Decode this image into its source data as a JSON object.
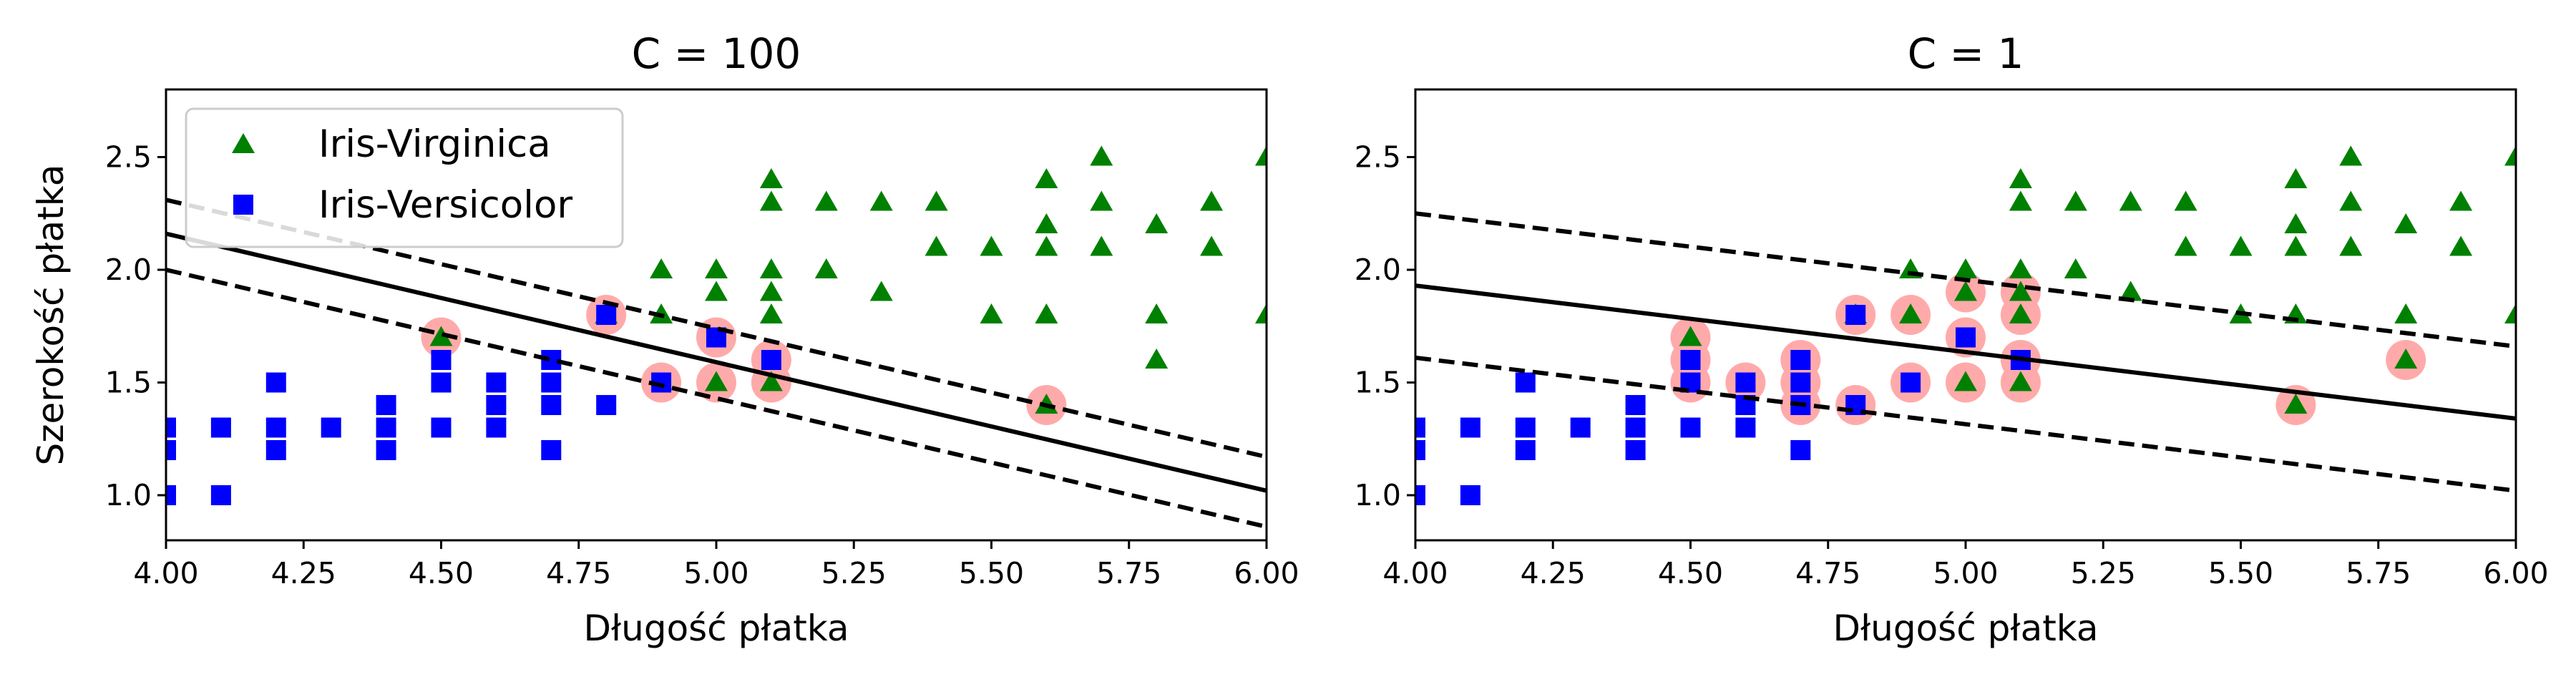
{
  "chart_data": [
    {
      "type": "scatter",
      "title": "C = 100",
      "xlabel": "Długość płatka",
      "ylabel": "Szerokość płatka",
      "xlim": [
        4.0,
        6.0
      ],
      "ylim": [
        0.8,
        2.8
      ],
      "xticks": [
        "4.00",
        "4.25",
        "4.50",
        "4.75",
        "5.00",
        "5.25",
        "5.50",
        "5.75",
        "6.00"
      ],
      "yticks": [
        "1.0",
        "1.5",
        "2.0",
        "2.5"
      ],
      "legend": {
        "position": "upper-left",
        "entries": [
          "Iris-Virginica",
          "Iris-Versicolor"
        ]
      },
      "series": [
        {
          "name": "Iris-Virginica",
          "marker": "triangle",
          "color": "#008000",
          "points": [
            [
              4.5,
              1.7
            ],
            [
              4.8,
              1.8
            ],
            [
              4.9,
              1.8
            ],
            [
              4.9,
              2.0
            ],
            [
              5.0,
              1.5
            ],
            [
              5.0,
              2.0
            ],
            [
              5.0,
              1.9
            ],
            [
              5.1,
              1.5
            ],
            [
              5.1,
              1.8
            ],
            [
              5.1,
              1.9
            ],
            [
              5.1,
              2.0
            ],
            [
              5.1,
              2.3
            ],
            [
              5.1,
              2.4
            ],
            [
              5.2,
              2.0
            ],
            [
              5.2,
              2.3
            ],
            [
              5.3,
              1.9
            ],
            [
              5.3,
              2.3
            ],
            [
              5.4,
              2.1
            ],
            [
              5.4,
              2.3
            ],
            [
              5.5,
              1.8
            ],
            [
              5.5,
              2.1
            ],
            [
              5.6,
              1.4
            ],
            [
              5.6,
              1.8
            ],
            [
              5.6,
              2.1
            ],
            [
              5.6,
              2.2
            ],
            [
              5.6,
              2.4
            ],
            [
              5.7,
              2.1
            ],
            [
              5.7,
              2.3
            ],
            [
              5.7,
              2.5
            ],
            [
              5.8,
              1.6
            ],
            [
              5.8,
              1.8
            ],
            [
              5.8,
              2.2
            ],
            [
              5.9,
              2.1
            ],
            [
              5.9,
              2.3
            ],
            [
              6.0,
              1.8
            ],
            [
              6.0,
              2.5
            ]
          ]
        },
        {
          "name": "Iris-Versicolor",
          "marker": "square",
          "color": "#0000ff",
          "points": [
            [
              4.0,
              1.0
            ],
            [
              4.0,
              1.2
            ],
            [
              4.0,
              1.3
            ],
            [
              4.1,
              1.0
            ],
            [
              4.1,
              1.3
            ],
            [
              4.2,
              1.2
            ],
            [
              4.2,
              1.3
            ],
            [
              4.2,
              1.5
            ],
            [
              4.3,
              1.3
            ],
            [
              4.4,
              1.2
            ],
            [
              4.4,
              1.3
            ],
            [
              4.4,
              1.4
            ],
            [
              4.5,
              1.3
            ],
            [
              4.5,
              1.5
            ],
            [
              4.5,
              1.6
            ],
            [
              4.6,
              1.3
            ],
            [
              4.6,
              1.4
            ],
            [
              4.6,
              1.5
            ],
            [
              4.7,
              1.2
            ],
            [
              4.7,
              1.4
            ],
            [
              4.7,
              1.5
            ],
            [
              4.7,
              1.6
            ],
            [
              4.8,
              1.4
            ],
            [
              4.8,
              1.8
            ],
            [
              4.9,
              1.5
            ],
            [
              5.0,
              1.7
            ],
            [
              5.1,
              1.6
            ]
          ]
        }
      ],
      "support_vectors": [
        [
          4.5,
          1.7
        ],
        [
          4.8,
          1.8
        ],
        [
          4.9,
          1.5
        ],
        [
          5.0,
          1.5
        ],
        [
          5.0,
          1.7
        ],
        [
          5.1,
          1.5
        ],
        [
          5.1,
          1.6
        ],
        [
          5.6,
          1.4
        ]
      ],
      "decision_boundary": {
        "x": [
          4.0,
          6.0
        ],
        "y": [
          2.16,
          1.02
        ],
        "style": "solid"
      },
      "margins": [
        {
          "x": [
            4.0,
            6.0
          ],
          "y": [
            2.31,
            1.17
          ],
          "style": "dashed"
        },
        {
          "x": [
            4.0,
            6.0
          ],
          "y": [
            2.0,
            0.86
          ],
          "style": "dashed"
        }
      ]
    },
    {
      "type": "scatter",
      "title": "C = 1",
      "xlabel": "Długość płatka",
      "ylabel": "",
      "xlim": [
        4.0,
        6.0
      ],
      "ylim": [
        0.8,
        2.8
      ],
      "xticks": [
        "4.00",
        "4.25",
        "4.50",
        "4.75",
        "5.00",
        "5.25",
        "5.50",
        "5.75",
        "6.00"
      ],
      "yticks": [
        "1.0",
        "1.5",
        "2.0",
        "2.5"
      ],
      "series": [
        {
          "name": "Iris-Virginica",
          "marker": "triangle",
          "color": "#008000",
          "points": [
            [
              4.5,
              1.7
            ],
            [
              4.8,
              1.8
            ],
            [
              4.9,
              1.8
            ],
            [
              4.9,
              2.0
            ],
            [
              5.0,
              1.5
            ],
            [
              5.0,
              2.0
            ],
            [
              5.0,
              1.9
            ],
            [
              5.1,
              1.5
            ],
            [
              5.1,
              1.8
            ],
            [
              5.1,
              1.9
            ],
            [
              5.1,
              2.0
            ],
            [
              5.1,
              2.3
            ],
            [
              5.1,
              2.4
            ],
            [
              5.2,
              2.0
            ],
            [
              5.2,
              2.3
            ],
            [
              5.3,
              1.9
            ],
            [
              5.3,
              2.3
            ],
            [
              5.4,
              2.1
            ],
            [
              5.4,
              2.3
            ],
            [
              5.5,
              1.8
            ],
            [
              5.5,
              2.1
            ],
            [
              5.6,
              1.4
            ],
            [
              5.6,
              1.8
            ],
            [
              5.6,
              2.1
            ],
            [
              5.6,
              2.2
            ],
            [
              5.6,
              2.4
            ],
            [
              5.7,
              2.1
            ],
            [
              5.7,
              2.3
            ],
            [
              5.7,
              2.5
            ],
            [
              5.8,
              1.6
            ],
            [
              5.8,
              1.8
            ],
            [
              5.8,
              2.2
            ],
            [
              5.9,
              2.1
            ],
            [
              5.9,
              2.3
            ],
            [
              6.0,
              1.8
            ],
            [
              6.0,
              2.5
            ]
          ]
        },
        {
          "name": "Iris-Versicolor",
          "marker": "square",
          "color": "#0000ff",
          "points": [
            [
              4.0,
              1.0
            ],
            [
              4.0,
              1.2
            ],
            [
              4.0,
              1.3
            ],
            [
              4.1,
              1.0
            ],
            [
              4.1,
              1.3
            ],
            [
              4.2,
              1.2
            ],
            [
              4.2,
              1.3
            ],
            [
              4.2,
              1.5
            ],
            [
              4.3,
              1.3
            ],
            [
              4.4,
              1.2
            ],
            [
              4.4,
              1.3
            ],
            [
              4.4,
              1.4
            ],
            [
              4.5,
              1.3
            ],
            [
              4.5,
              1.5
            ],
            [
              4.5,
              1.6
            ],
            [
              4.6,
              1.3
            ],
            [
              4.6,
              1.4
            ],
            [
              4.6,
              1.5
            ],
            [
              4.7,
              1.2
            ],
            [
              4.7,
              1.4
            ],
            [
              4.7,
              1.5
            ],
            [
              4.7,
              1.6
            ],
            [
              4.8,
              1.4
            ],
            [
              4.8,
              1.8
            ],
            [
              4.9,
              1.5
            ],
            [
              5.0,
              1.7
            ],
            [
              5.1,
              1.6
            ]
          ]
        }
      ],
      "support_vectors": [
        [
          4.5,
          1.5
        ],
        [
          4.5,
          1.6
        ],
        [
          4.5,
          1.7
        ],
        [
          4.6,
          1.5
        ],
        [
          4.7,
          1.4
        ],
        [
          4.7,
          1.5
        ],
        [
          4.7,
          1.6
        ],
        [
          4.8,
          1.4
        ],
        [
          4.8,
          1.8
        ],
        [
          4.9,
          1.5
        ],
        [
          4.9,
          1.8
        ],
        [
          5.0,
          1.5
        ],
        [
          5.0,
          1.7
        ],
        [
          5.0,
          1.9
        ],
        [
          5.1,
          1.5
        ],
        [
          5.1,
          1.6
        ],
        [
          5.1,
          1.8
        ],
        [
          5.1,
          1.9
        ],
        [
          5.6,
          1.4
        ],
        [
          5.8,
          1.6
        ]
      ],
      "decision_boundary": {
        "x": [
          4.0,
          6.0
        ],
        "y": [
          1.93,
          1.34
        ],
        "style": "solid"
      },
      "margins": [
        {
          "x": [
            4.0,
            6.0
          ],
          "y": [
            2.25,
            1.66
          ],
          "style": "dashed"
        },
        {
          "x": [
            4.0,
            6.0
          ],
          "y": [
            1.61,
            1.02
          ],
          "style": "dashed"
        }
      ]
    }
  ]
}
